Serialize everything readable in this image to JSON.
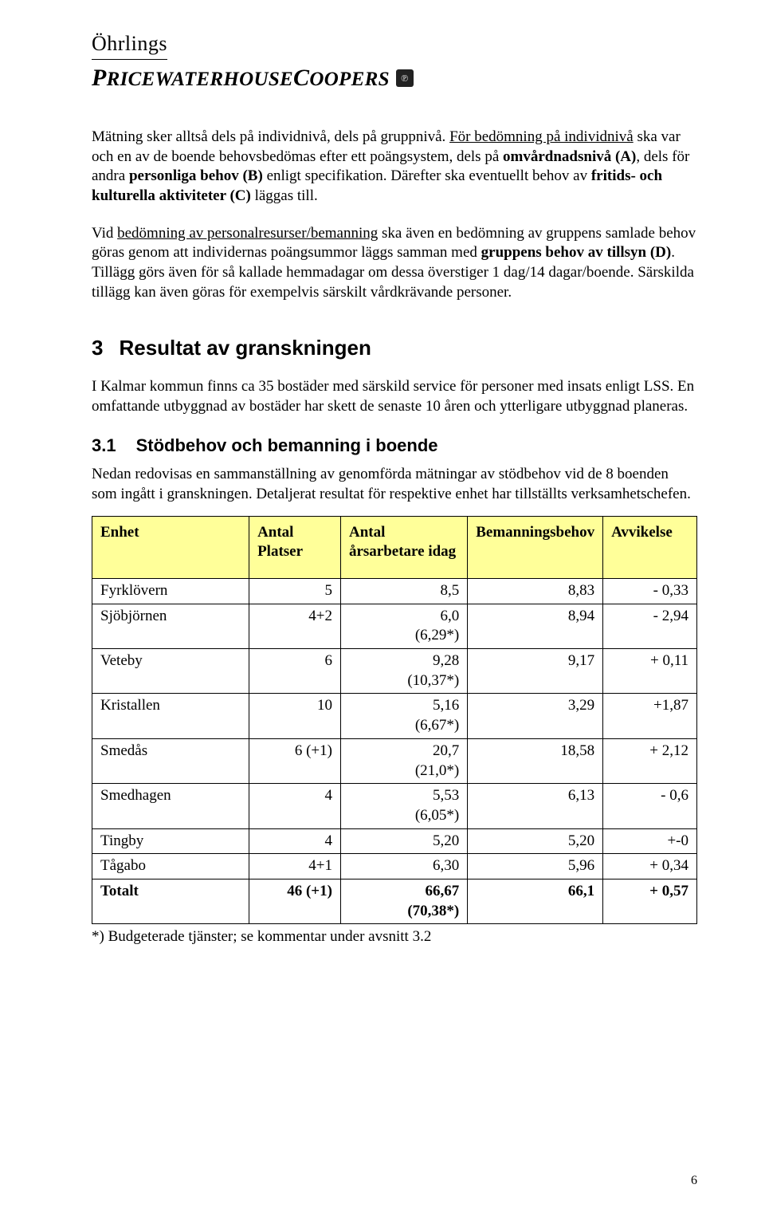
{
  "logo": {
    "top": "Öhrlings",
    "bottom_p": "P",
    "bottom_rice": "RICEWATERHOUSE",
    "bottom_c": "C",
    "bottom_oopers": "OOPERS",
    "badge": "℗"
  },
  "p1_a": "Mätning sker alltså dels på individnivå, dels på gruppnivå. ",
  "p1_b": "För bedömning på individnivå",
  "p1_c": " ska var och en av de boende behovsbedömas efter ett poängsystem, dels på ",
  "p1_d": "omvårdnadsnivå (A)",
  "p1_e": ", dels för andra ",
  "p1_f": "personliga behov (B)",
  "p1_g": " enligt specifikation. Därefter ska eventuellt behov av ",
  "p1_h": "fritids- och kulturella aktiviteter (C)",
  "p1_i": " läggas till.",
  "p2_a": "Vid ",
  "p2_b": "bedömning av personalresurser/bemanning",
  "p2_c": " ska även en bedömning av gruppens samlade behov göras genom att individernas poängsummor läggs samman med ",
  "p2_d": "gruppens behov av tillsyn (D)",
  "p2_e": ". Tillägg görs även för så kallade hemmadagar om dessa överstiger 1 dag/14 dagar/boende. Särskilda tillägg kan även göras för exempelvis särskilt vårdkrävande personer.",
  "s3": {
    "num": "3",
    "title": "Resultat av granskningen"
  },
  "p3": "I Kalmar kommun finns ca 35 bostäder med särskild service för personer med insats enligt LSS. En omfattande utbyggnad av bostäder har skett de senaste 10 åren och ytterligare utbyggnad planeras.",
  "s31": {
    "num": "3.1",
    "title": "Stödbehov och bemanning i boende"
  },
  "p4": "Nedan redovisas en sammanställning av genomförda mätningar av stödbehov vid de 8 boenden som ingått i granskningen. Detaljerat resultat för respektive enhet har tillställts verksamhetschefen.",
  "table": {
    "header_bg": "#ffff99",
    "columns": [
      "Enhet",
      "Antal Platser",
      "Antal årsarbetare idag",
      "Bemanningsbehov",
      "Avvikelse"
    ],
    "rows": [
      [
        "Fyrklövern",
        "5",
        "8,5",
        "8,83",
        "- 0,33"
      ],
      [
        "Sjöbjörnen",
        "4+2",
        "6,0 (6,29*)",
        "8,94",
        "- 2,94"
      ],
      [
        "Veteby",
        "6",
        "9,28 (10,37*)",
        "9,17",
        "+ 0,11"
      ],
      [
        "Kristallen",
        "10",
        "5,16 (6,67*)",
        "3,29",
        "+1,87"
      ],
      [
        "Smedås",
        "6 (+1)",
        "20,7 (21,0*)",
        "18,58",
        "+ 2,12"
      ],
      [
        "Smedhagen",
        "4",
        "5,53 (6,05*)",
        "6,13",
        "- 0,6"
      ],
      [
        "Tingby",
        "4",
        "5,20",
        "5,20",
        "+-0"
      ],
      [
        "Tågabo",
        "4+1",
        "6,30",
        "5,96",
        "+ 0,34"
      ]
    ],
    "total": [
      "Totalt",
      "46 (+1)",
      "66,67 (70,38*)",
      "66,1",
      "+ 0,57"
    ]
  },
  "footnote": "*) Budgeterade tjänster; se kommentar under avsnitt 3.2",
  "page": "6"
}
